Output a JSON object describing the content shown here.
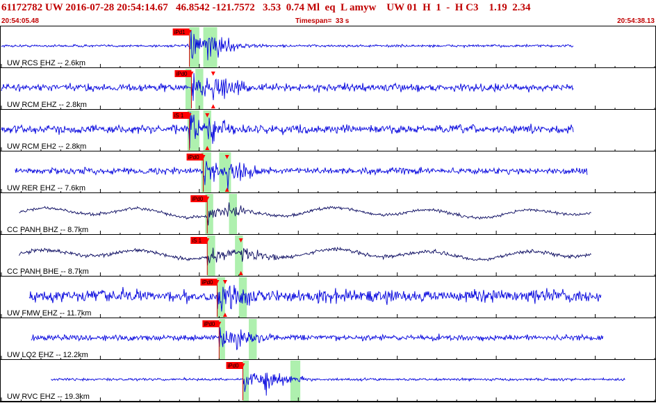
{
  "header": {
    "title": "61172782 UW 2016-07-28 20:54:14.67   46.8542 -121.7572   3.53  0.74 Ml  eq  L amyw    UW 01  H  1  -  H C3    1.19  2.34",
    "start_time": "20:54:05.48",
    "timespan": "Timespan=  33 s",
    "end_time": "20:54:38.13"
  },
  "colors": {
    "blue_trace": "#0000dd",
    "dark_trace": "#0a0a60",
    "pick_flag": "#ff0000",
    "window_shade": "#aef0ae",
    "header_text": "#c00000"
  },
  "chart_data": {
    "type": "seismogram",
    "start_time": "20:54:05.48",
    "end_time": "20:54:38.13",
    "timespan_s": 33,
    "traces": [
      {
        "label": "UW RCS EHZ -- 2.6km",
        "pick_label": "iPd1",
        "t_start": 0.0,
        "t_end": 28.9,
        "pick_t": 9.5,
        "s_t": null,
        "windows": [
          [
            9.5,
            10.0
          ],
          [
            10.2,
            10.9
          ]
        ],
        "noise": 0.06,
        "amp": 0.95,
        "color": "blue"
      },
      {
        "label": "UW RCM EHZ -- 2.8km",
        "pick_label": "iPd0",
        "t_start": 0.0,
        "t_end": 28.9,
        "pick_t": 9.6,
        "s_t": 10.7,
        "windows": [
          [
            9.3,
            9.6
          ],
          [
            9.8,
            10.2
          ]
        ],
        "noise": 0.18,
        "amp": 0.95,
        "color": "blue"
      },
      {
        "label": "UW RCM EH2 -- 2.8km",
        "pick_label": "iS 1",
        "t_start": 0.0,
        "t_end": 28.9,
        "pick_t": 9.5,
        "s_t": 10.4,
        "windows": [
          [
            9.4,
            10.0
          ],
          [
            10.2,
            10.6
          ]
        ],
        "noise": 0.2,
        "amp": 0.95,
        "color": "blue"
      },
      {
        "label": "UW RER EHZ -- 7.6km",
        "pick_label": "iPd0",
        "t_start": 0.7,
        "t_end": 29.6,
        "pick_t": 10.2,
        "s_t": 11.4,
        "windows": [
          [
            10.1,
            10.6
          ],
          [
            11.0,
            11.6
          ]
        ],
        "noise": 0.15,
        "amp": 0.9,
        "color": "blue"
      },
      {
        "label": "CC PANH BHZ -- 8.7km",
        "pick_label": "iPd0",
        "t_start": 0.9,
        "t_end": 29.8,
        "pick_t": 10.4,
        "s_t": null,
        "windows": [
          [
            10.3,
            10.7
          ],
          [
            11.5,
            11.9
          ]
        ],
        "noise": 0.08,
        "amp": 0.55,
        "color": "dark"
      },
      {
        "label": "CC PANH BHE -- 8.7km",
        "pick_label": "iS 1",
        "t_start": 0.9,
        "t_end": 29.8,
        "pick_t": 10.4,
        "s_t": 12.1,
        "windows": [
          [
            10.4,
            10.8
          ],
          [
            11.8,
            12.2
          ]
        ],
        "noise": 0.1,
        "amp": 0.7,
        "color": "dark"
      },
      {
        "label": "UW FMW EHZ -- 11.7km",
        "pick_label": "iPd0",
        "t_start": 1.4,
        "t_end": 30.3,
        "pick_t": 10.9,
        "s_t": 11.3,
        "windows": [
          [
            10.9,
            11.3
          ],
          [
            12.0,
            12.4
          ]
        ],
        "noise": 0.3,
        "amp": 0.8,
        "color": "blue"
      },
      {
        "label": "UW LQ2 EHZ -- 12.2km",
        "pick_label": "iPd0",
        "t_start": 1.5,
        "t_end": 30.4,
        "pick_t": 11.0,
        "s_t": null,
        "windows": [
          [
            11.0,
            11.3
          ],
          [
            12.5,
            12.9
          ]
        ],
        "noise": 0.14,
        "amp": 0.75,
        "color": "blue"
      },
      {
        "label": "UW RVC EHZ -- 19.3km",
        "pick_label": "iPd0",
        "t_start": 2.5,
        "t_end": 31.5,
        "pick_t": 12.2,
        "s_t": null,
        "windows": [
          [
            12.2,
            12.5
          ],
          [
            14.6,
            15.1
          ]
        ],
        "noise": 0.06,
        "amp": 0.9,
        "color": "blue"
      }
    ]
  }
}
